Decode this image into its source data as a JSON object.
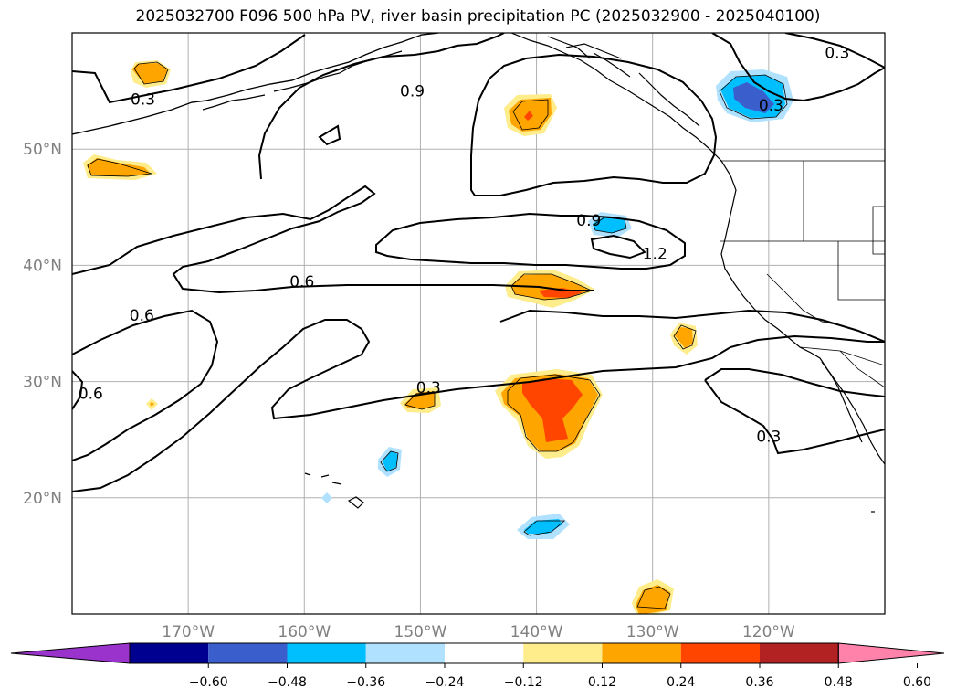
{
  "title": "2025032700 F096 500 hPa PV, river basin precipitation PC (2025032900 - 2025040100)",
  "map": {
    "lon_range": [
      -180,
      -110
    ],
    "lat_range": [
      10,
      60
    ],
    "lat_ticks": [
      {
        "value": 50,
        "label": "50°N"
      },
      {
        "value": 40,
        "label": "40°N"
      },
      {
        "value": 30,
        "label": "30°N"
      },
      {
        "value": 20,
        "label": "20°N"
      }
    ],
    "lon_ticks": [
      {
        "value": -170,
        "label": "170°W"
      },
      {
        "value": -160,
        "label": "160°W"
      },
      {
        "value": -150,
        "label": "150°W"
      },
      {
        "value": -140,
        "label": "140°W"
      },
      {
        "value": -130,
        "label": "130°W"
      },
      {
        "value": -120,
        "label": "120°W"
      }
    ],
    "grid": true,
    "contour_variable": "500 hPa PV",
    "contour_labels": [
      {
        "text": "0.3",
        "lon": -173.9,
        "lat": 54.3
      },
      {
        "text": "0.9",
        "lon": -150.7,
        "lat": 55.0
      },
      {
        "text": "0.3",
        "lon": -114.1,
        "lat": 58.3
      },
      {
        "text": "0.3",
        "lon": -119.8,
        "lat": 53.8
      },
      {
        "text": "0.9",
        "lon": -135.5,
        "lat": 43.9
      },
      {
        "text": "1.2",
        "lon": -129.8,
        "lat": 41.0
      },
      {
        "text": "0.6",
        "lon": -160.2,
        "lat": 38.6
      },
      {
        "text": "0.6",
        "lon": -174.0,
        "lat": 35.7
      },
      {
        "text": "0.6",
        "lon": -178.4,
        "lat": 29.0
      },
      {
        "text": "0.3",
        "lon": -149.3,
        "lat": 29.5
      },
      {
        "text": "0.3",
        "lon": -120.0,
        "lat": 25.3
      }
    ]
  },
  "colorbar": {
    "extend": "both",
    "colors": [
      "#9933cc",
      "#000090",
      "#3a5fcd",
      "#00bfff",
      "#b0e2ff",
      "#ffffff",
      "#ffec8b",
      "#ffa500",
      "#ff4500",
      "#b22222",
      "#ff82ab"
    ],
    "tick_labels": [
      "−0.60",
      "−0.48",
      "−0.36",
      "−0.24",
      "−0.12",
      "0.12",
      "0.24",
      "0.36",
      "0.48",
      "0.60"
    ]
  }
}
